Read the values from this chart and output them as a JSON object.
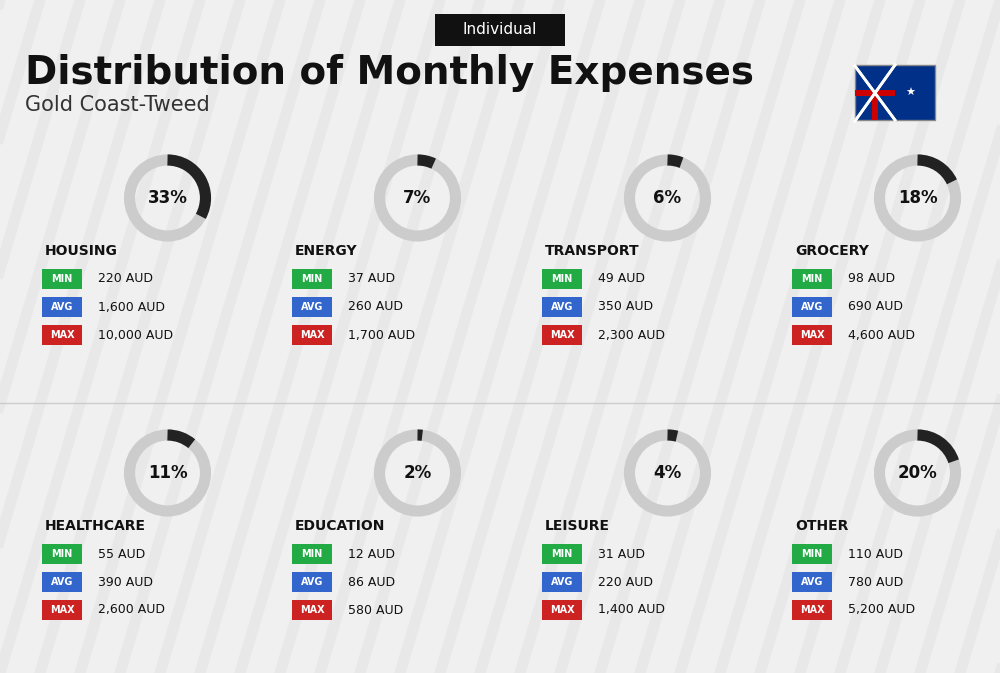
{
  "title": "Distribution of Monthly Expenses",
  "subtitle": "Gold Coast-Tweed",
  "tag": "Individual",
  "bg_color": "#f0f0f0",
  "categories": [
    {
      "name": "HOUSING",
      "percent": 33,
      "min_val": "220 AUD",
      "avg_val": "1,600 AUD",
      "max_val": "10,000 AUD",
      "col": 0,
      "row": 0
    },
    {
      "name": "ENERGY",
      "percent": 7,
      "min_val": "37 AUD",
      "avg_val": "260 AUD",
      "max_val": "1,700 AUD",
      "col": 1,
      "row": 0
    },
    {
      "name": "TRANSPORT",
      "percent": 6,
      "min_val": "49 AUD",
      "avg_val": "350 AUD",
      "max_val": "2,300 AUD",
      "col": 2,
      "row": 0
    },
    {
      "name": "GROCERY",
      "percent": 18,
      "min_val": "98 AUD",
      "avg_val": "690 AUD",
      "max_val": "4,600 AUD",
      "col": 3,
      "row": 0
    },
    {
      "name": "HEALTHCARE",
      "percent": 11,
      "min_val": "55 AUD",
      "avg_val": "390 AUD",
      "max_val": "2,600 AUD",
      "col": 0,
      "row": 1
    },
    {
      "name": "EDUCATION",
      "percent": 2,
      "min_val": "12 AUD",
      "avg_val": "86 AUD",
      "max_val": "580 AUD",
      "col": 1,
      "row": 1
    },
    {
      "name": "LEISURE",
      "percent": 4,
      "min_val": "31 AUD",
      "avg_val": "220 AUD",
      "max_val": "1,400 AUD",
      "col": 2,
      "row": 1
    },
    {
      "name": "OTHER",
      "percent": 20,
      "min_val": "110 AUD",
      "avg_val": "780 AUD",
      "max_val": "5,200 AUD",
      "col": 3,
      "row": 1
    }
  ],
  "min_color": "#22aa44",
  "avg_color": "#3366cc",
  "max_color": "#cc2222",
  "ring_color_dark": "#222222",
  "ring_color_light": "#cccccc"
}
